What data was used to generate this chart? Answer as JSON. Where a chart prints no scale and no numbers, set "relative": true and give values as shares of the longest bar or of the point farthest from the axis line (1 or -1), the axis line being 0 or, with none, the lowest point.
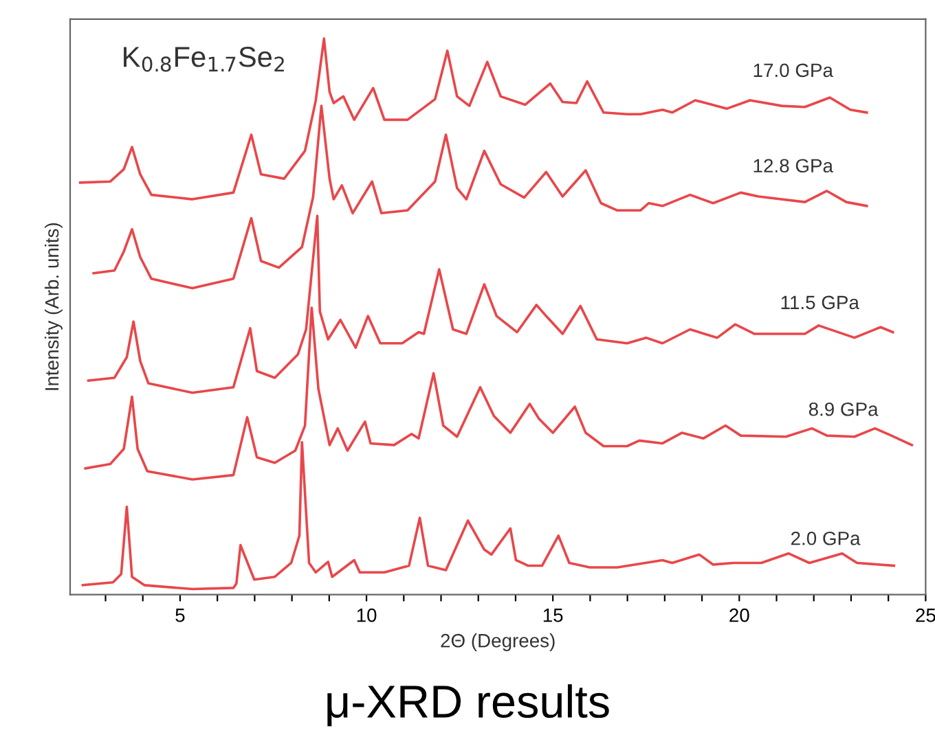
{
  "chart_data": {
    "type": "line",
    "title": "K$_{0.8}$Fe$_{1.7}$Se$_{2}$",
    "xlabel": "2Θ (Degrees)",
    "ylabel": "Intensity (Arb. units)",
    "annotations": [
      "μ-XRD results"
    ],
    "relative": true,
    "tick_labels": "x",
    "xlim": [
      2.05,
      25
    ],
    "xticks": [
      {
        "value": 3,
        "label": null
      },
      {
        "value": 4,
        "label": null
      },
      5,
      {
        "value": 6,
        "label": null
      },
      {
        "value": 7,
        "label": null
      },
      {
        "value": 8,
        "label": null
      },
      {
        "value": 9,
        "label": null
      },
      10,
      {
        "value": 11,
        "label": null
      },
      {
        "value": 12,
        "label": null
      },
      {
        "value": 13,
        "label": null
      },
      {
        "value": 14,
        "label": null
      },
      15,
      {
        "value": 16,
        "label": null
      },
      {
        "value": 17,
        "label": null
      },
      {
        "value": 18,
        "label": null
      },
      {
        "value": 19,
        "label": null
      },
      20,
      {
        "value": 21,
        "label": null
      },
      {
        "value": 22,
        "label": null
      },
      {
        "value": 23,
        "label": null
      },
      {
        "value": 24,
        "label": null
      },
      25
    ],
    "grid": false,
    "legend": false,
    "line_style": "solid",
    "series": [
      {
        "name": "2.0 GPa",
        "color": "#e8474a",
        "x": [
          2.39,
          3.2,
          3.42,
          3.57,
          3.71,
          4.04,
          5.33,
          6.43,
          6.51,
          6.62,
          6.99,
          7.54,
          7.98,
          8.2,
          8.27,
          8.46,
          8.64,
          8.97,
          9.08,
          9.67,
          9.82,
          10.48,
          11.14,
          11.43,
          11.65,
          12.13,
          12.72,
          13.16,
          13.35,
          13.86,
          14.01,
          14.34,
          14.71,
          15.15,
          15.44,
          15.99,
          16.73,
          17.94,
          18.2,
          18.93,
          19.3,
          19.85,
          20.59,
          21.32,
          21.88,
          22.76,
          23.16,
          24.15
        ],
        "values": [
          0.017,
          0.022,
          0.037,
          0.158,
          0.032,
          0.017,
          0.01,
          0.012,
          0.02,
          0.089,
          0.027,
          0.032,
          0.057,
          0.106,
          0.274,
          0.057,
          0.04,
          0.059,
          0.032,
          0.062,
          0.04,
          0.04,
          0.052,
          0.138,
          0.052,
          0.044,
          0.133,
          0.081,
          0.072,
          0.119,
          0.062,
          0.052,
          0.052,
          0.106,
          0.057,
          0.049,
          0.049,
          0.062,
          0.057,
          0.072,
          0.054,
          0.057,
          0.057,
          0.074,
          0.057,
          0.074,
          0.057,
          0.052
        ]
      },
      {
        "name": "8.9 GPa",
        "color": "#e8474a",
        "x": [
          2.46,
          3.13,
          3.49,
          3.71,
          3.86,
          4.12,
          5.33,
          6.43,
          6.8,
          7.06,
          7.54,
          8.09,
          8.35,
          8.53,
          8.71,
          9.01,
          9.23,
          9.49,
          9.96,
          10.11,
          10.74,
          11.21,
          11.4,
          11.8,
          12.06,
          12.43,
          13.05,
          13.42,
          13.86,
          14.38,
          14.63,
          15.0,
          15.59,
          15.88,
          16.36,
          16.99,
          17.32,
          17.94,
          18.46,
          19.04,
          19.63,
          20.04,
          21.25,
          21.95,
          22.35,
          23.09,
          23.64,
          24.08,
          24.63
        ],
        "values": [
          0.227,
          0.235,
          0.262,
          0.356,
          0.262,
          0.222,
          0.207,
          0.215,
          0.319,
          0.247,
          0.237,
          0.259,
          0.304,
          0.516,
          0.37,
          0.269,
          0.299,
          0.259,
          0.311,
          0.272,
          0.269,
          0.289,
          0.281,
          0.398,
          0.304,
          0.284,
          0.373,
          0.321,
          0.291,
          0.343,
          0.316,
          0.291,
          0.338,
          0.291,
          0.267,
          0.267,
          0.277,
          0.272,
          0.291,
          0.281,
          0.304,
          0.286,
          0.284,
          0.299,
          0.286,
          0.284,
          0.299,
          0.286,
          0.269
        ]
      },
      {
        "name": "11.5 GPa",
        "color": "#e8474a",
        "x": [
          2.54,
          3.24,
          3.57,
          3.75,
          3.93,
          4.15,
          5.33,
          6.43,
          6.88,
          7.06,
          7.54,
          8.16,
          8.38,
          8.68,
          8.75,
          8.97,
          9.3,
          9.71,
          10.04,
          10.37,
          10.96,
          11.4,
          11.54,
          11.95,
          12.32,
          12.68,
          13.16,
          13.49,
          14.04,
          14.56,
          14.82,
          15.26,
          15.74,
          16.18,
          16.99,
          17.5,
          17.94,
          18.68,
          19.41,
          19.89,
          20.4,
          21.76,
          22.13,
          23.09,
          23.79,
          24.12
        ],
        "values": [
          0.385,
          0.39,
          0.427,
          0.491,
          0.42,
          0.38,
          0.363,
          0.373,
          0.479,
          0.402,
          0.39,
          0.432,
          0.477,
          0.681,
          0.509,
          0.459,
          0.494,
          0.444,
          0.501,
          0.452,
          0.452,
          0.472,
          0.469,
          0.585,
          0.477,
          0.469,
          0.558,
          0.501,
          0.472,
          0.521,
          0.501,
          0.469,
          0.519,
          0.459,
          0.452,
          0.462,
          0.452,
          0.477,
          0.462,
          0.486,
          0.469,
          0.469,
          0.484,
          0.462,
          0.481,
          0.472
        ]
      },
      {
        "name": "12.8 GPa",
        "color": "#e8474a",
        "x": [
          2.68,
          3.24,
          3.49,
          3.71,
          3.93,
          4.23,
          5.33,
          6.43,
          6.91,
          7.17,
          7.65,
          8.27,
          8.57,
          8.79,
          9.01,
          9.12,
          9.34,
          9.63,
          10.15,
          10.4,
          11.1,
          11.84,
          12.13,
          12.43,
          12.68,
          13.16,
          13.6,
          14.23,
          14.82,
          15.26,
          15.88,
          16.29,
          16.73,
          17.35,
          17.57,
          17.94,
          18.68,
          19.3,
          20.04,
          20.51,
          21.76,
          22.35,
          22.87,
          23.42
        ],
        "values": [
          0.578,
          0.583,
          0.617,
          0.657,
          0.607,
          0.568,
          0.551,
          0.568,
          0.677,
          0.6,
          0.588,
          0.625,
          0.716,
          0.879,
          0.748,
          0.711,
          0.736,
          0.686,
          0.743,
          0.686,
          0.691,
          0.743,
          0.827,
          0.731,
          0.711,
          0.798,
          0.738,
          0.714,
          0.76,
          0.716,
          0.763,
          0.704,
          0.691,
          0.691,
          0.704,
          0.699,
          0.719,
          0.704,
          0.723,
          0.716,
          0.706,
          0.726,
          0.706,
          0.699
        ]
      },
      {
        "name": "17.0 GPa",
        "color": "#e8474a",
        "x": [
          2.32,
          3.13,
          3.49,
          3.71,
          3.93,
          4.23,
          5.33,
          6.43,
          6.91,
          7.17,
          7.79,
          8.35,
          8.64,
          8.86,
          9.01,
          9.12,
          9.38,
          9.67,
          10.18,
          10.48,
          11.1,
          11.84,
          12.17,
          12.43,
          12.76,
          13.24,
          13.6,
          14.26,
          14.93,
          15.26,
          15.63,
          15.92,
          16.36,
          16.99,
          17.35,
          17.94,
          18.2,
          18.82,
          19.67,
          20.29,
          21.14,
          21.76,
          22.43,
          22.98,
          23.42
        ],
        "values": [
          0.741,
          0.743,
          0.765,
          0.805,
          0.756,
          0.719,
          0.711,
          0.723,
          0.827,
          0.756,
          0.748,
          0.798,
          0.889,
          1.0,
          0.904,
          0.884,
          0.896,
          0.854,
          0.911,
          0.854,
          0.854,
          0.891,
          0.978,
          0.896,
          0.879,
          0.958,
          0.896,
          0.881,
          0.919,
          0.886,
          0.884,
          0.923,
          0.867,
          0.864,
          0.864,
          0.872,
          0.867,
          0.889,
          0.874,
          0.889,
          0.879,
          0.877,
          0.894,
          0.872,
          0.867
        ]
      }
    ]
  }
}
